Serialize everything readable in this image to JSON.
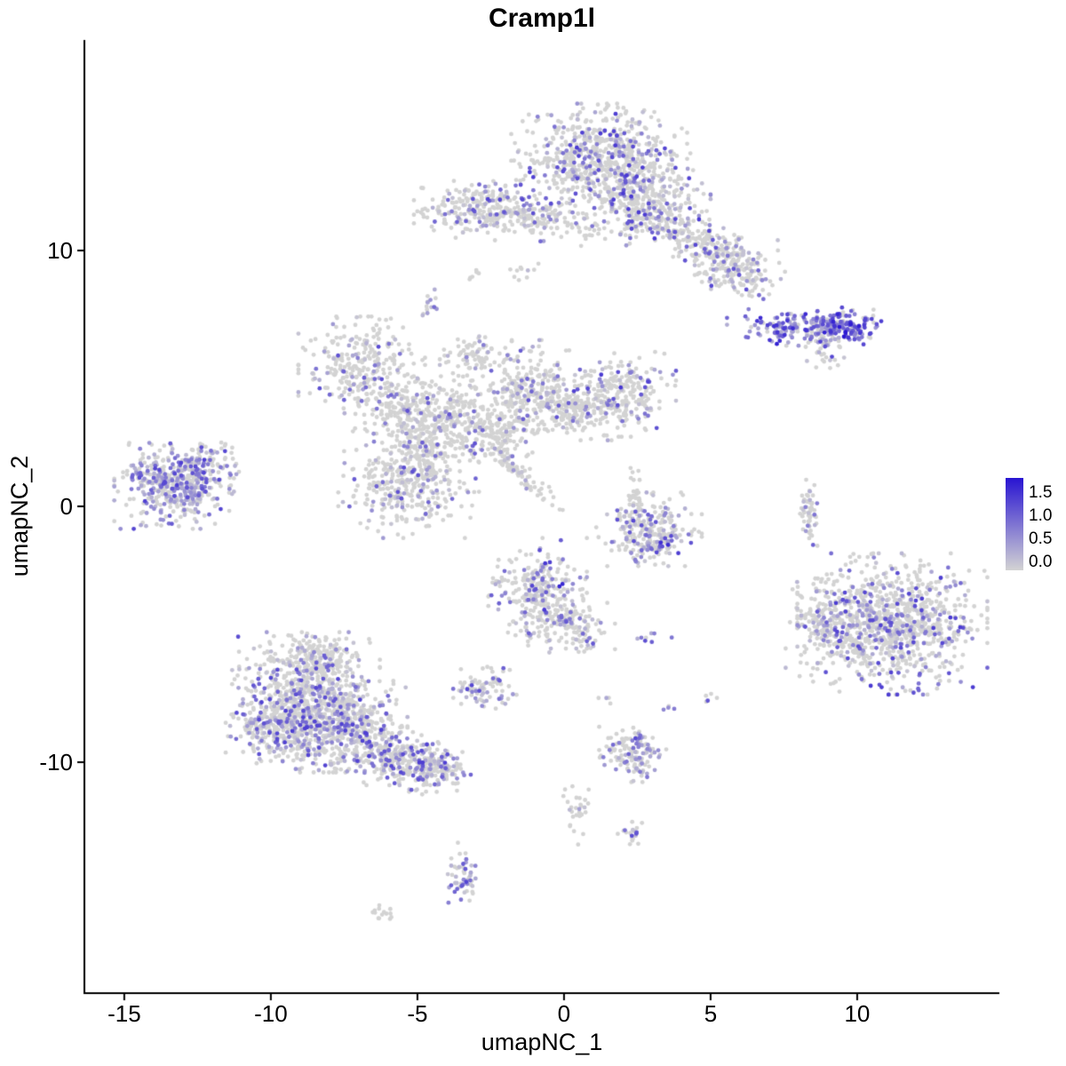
{
  "chart_data": {
    "type": "scatter",
    "title": "Cramp1l",
    "xlabel": "umapNC_1",
    "ylabel": "umapNC_2",
    "xlim": [
      -16.36,
      14.85
    ],
    "ylim": [
      -19.03,
      18.23
    ],
    "x_ticks": [
      "-15",
      "-10",
      "-5",
      "0",
      "5",
      "10"
    ],
    "x_tick_values": [
      -15,
      -10,
      -5,
      0,
      5,
      10
    ],
    "y_ticks": [
      "-10",
      "0",
      "10"
    ],
    "y_tick_values": [
      -10,
      0,
      10
    ],
    "grid": false,
    "legend_position": "right",
    "legend": {
      "labels": [
        "1.5",
        "1.0",
        "0.5",
        "0.0"
      ],
      "values": [
        1.5,
        1.0,
        0.5,
        0.0
      ],
      "max": 1.6
    },
    "colors": {
      "low": "#d3d3d3",
      "high": "#2814d2",
      "axis": "#000000",
      "background": "#ffffff"
    },
    "point_radius": 2.4,
    "seed": 42,
    "clusters": [
      {
        "name": "top-main",
        "cx": 1.2,
        "cy": 13.7,
        "sx": 1.25,
        "sy": 0.85,
        "n": 620,
        "frac": 0.28,
        "vmax": 1.3
      },
      {
        "name": "top-main-lower",
        "cx": 2.6,
        "cy": 12.0,
        "sx": 1.0,
        "sy": 0.75,
        "n": 360,
        "frac": 0.28,
        "vmax": 1.3
      },
      {
        "name": "top-arm",
        "cx": 4.6,
        "cy": 10.3,
        "sx": 1.3,
        "sy": 0.4,
        "rot": -0.63,
        "n": 260,
        "frac": 0.25,
        "vmax": 1.2
      },
      {
        "name": "top-arm-end",
        "cx": 5.9,
        "cy": 9.3,
        "sx": 0.6,
        "sy": 0.5,
        "n": 140,
        "frac": 0.3,
        "vmax": 1.2
      },
      {
        "name": "topleft-arm",
        "cx": -2.6,
        "cy": 11.6,
        "sx": 1.05,
        "sy": 0.5,
        "n": 280,
        "frac": 0.22,
        "vmax": 1.2
      },
      {
        "name": "topleft-tail",
        "cx": -0.9,
        "cy": 11.2,
        "sx": 0.5,
        "sy": 0.35,
        "n": 70,
        "frac": 0.15,
        "vmax": 1.0
      },
      {
        "name": "top-bridge",
        "cx": 0.5,
        "cy": 10.9,
        "sx": 0.45,
        "sy": 0.3,
        "n": 30,
        "frac": 0.15,
        "vmax": 1.0
      },
      {
        "name": "satellite-mid-9",
        "cx": -1.4,
        "cy": 9.2,
        "sx": 0.3,
        "sy": 0.2,
        "n": 10,
        "frac": 0.1,
        "vmax": 0.8
      },
      {
        "name": "satellite-mid-8",
        "cx": -4.6,
        "cy": 8.0,
        "sx": 0.2,
        "sy": 0.3,
        "n": 16,
        "frac": 0.35,
        "vmax": 1.0
      },
      {
        "name": "satellite-mid-35",
        "cx": -3.0,
        "cy": 9.0,
        "sx": 0.15,
        "sy": 0.15,
        "n": 6,
        "frac": 0.2,
        "vmax": 0.8
      },
      {
        "name": "right-streak",
        "cx": 8.2,
        "cy": 7.0,
        "sx": 1.1,
        "sy": 0.3,
        "n": 200,
        "frac": 0.75,
        "vmin": 0.3,
        "vmax": 1.5
      },
      {
        "name": "right-streak-end",
        "cx": 9.6,
        "cy": 7.05,
        "sx": 0.45,
        "sy": 0.3,
        "n": 90,
        "frac": 0.9,
        "vmin": 0.5,
        "vmax": 1.6
      },
      {
        "name": "right-streak-tail",
        "cx": 8.9,
        "cy": 6.3,
        "sx": 0.3,
        "sy": 0.4,
        "n": 45,
        "frac": 0.4,
        "vmax": 1.2
      },
      {
        "name": "net-topleft",
        "cx": -6.9,
        "cy": 5.5,
        "sx": 0.9,
        "sy": 0.8,
        "n": 280,
        "frac": 0.18,
        "vmax": 1.2
      },
      {
        "name": "net-arm1",
        "cx": -5.4,
        "cy": 3.9,
        "sx": 0.75,
        "sy": 0.65,
        "n": 200,
        "frac": 0.15,
        "vmax": 1.1
      },
      {
        "name": "net-arm2",
        "cx": -4.6,
        "cy": 2.3,
        "sx": 0.65,
        "sy": 0.75,
        "n": 190,
        "frac": 0.15,
        "vmax": 1.1
      },
      {
        "name": "net-blob",
        "cx": -5.3,
        "cy": 0.8,
        "sx": 1.0,
        "sy": 0.85,
        "n": 330,
        "frac": 0.2,
        "vmax": 1.2
      },
      {
        "name": "net-bridge1",
        "cx": -3.6,
        "cy": 3.6,
        "sx": 0.55,
        "sy": 0.55,
        "n": 130,
        "frac": 0.12,
        "vmax": 1.0
      },
      {
        "name": "net-bridge2",
        "cx": -2.3,
        "cy": 3.0,
        "sx": 0.65,
        "sy": 0.6,
        "n": 150,
        "frac": 0.12,
        "vmax": 1.0
      },
      {
        "name": "net-center-top",
        "cx": -1.2,
        "cy": 4.7,
        "sx": 0.8,
        "sy": 0.75,
        "n": 260,
        "frac": 0.2,
        "vmax": 1.2
      },
      {
        "name": "net-center-right",
        "cx": 0.3,
        "cy": 3.9,
        "sx": 0.75,
        "sy": 0.55,
        "n": 170,
        "frac": 0.15,
        "vmax": 1.1
      },
      {
        "name": "net-right",
        "cx": 1.9,
        "cy": 4.4,
        "sx": 0.8,
        "sy": 0.7,
        "n": 240,
        "frac": 0.25,
        "vmax": 1.3
      },
      {
        "name": "net-streak",
        "cx": -1.6,
        "cy": 1.4,
        "sx": 0.95,
        "sy": 0.16,
        "rot": -0.84,
        "n": 85,
        "frac": 0.12,
        "vmax": 1.0
      },
      {
        "name": "net-top-wisp",
        "cx": -3.1,
        "cy": 5.9,
        "sx": 0.5,
        "sy": 0.35,
        "n": 70,
        "frac": 0.12,
        "vmax": 1.0
      },
      {
        "name": "left-island",
        "cx": -13.3,
        "cy": 0.8,
        "sx": 0.85,
        "sy": 0.7,
        "n": 470,
        "frac": 0.5,
        "vmin": 0.2,
        "vmax": 1.25
      },
      {
        "name": "left-island-edge",
        "cx": -12.2,
        "cy": 1.6,
        "sx": 0.5,
        "sy": 0.45,
        "n": 70,
        "frac": 0.4,
        "vmax": 1.2
      },
      {
        "name": "mid-crescent",
        "cx": 2.9,
        "cy": -0.9,
        "sx": 0.75,
        "sy": 0.6,
        "n": 230,
        "frac": 0.3,
        "vmax": 1.2
      },
      {
        "name": "mid-crescent-dark",
        "cx": 3.1,
        "cy": -1.5,
        "sx": 0.4,
        "sy": 0.2,
        "n": 40,
        "frac": 0.6,
        "vmin": 0.3,
        "vmax": 1.4
      },
      {
        "name": "mid-thread",
        "cx": 2.4,
        "cy": 0.3,
        "sx": 0.12,
        "sy": 0.5,
        "n": 35,
        "frac": 0.15,
        "vmax": 1.0
      },
      {
        "name": "center-blob",
        "cx": -0.9,
        "cy": -3.4,
        "sx": 0.7,
        "sy": 0.9,
        "n": 310,
        "frac": 0.3,
        "vmax": 1.35
      },
      {
        "name": "center-blob-arm",
        "cx": 0.3,
        "cy": -4.7,
        "sx": 0.6,
        "sy": 0.45,
        "n": 120,
        "frac": 0.2,
        "vmax": 1.2
      },
      {
        "name": "center-dark-dot",
        "cx": -0.15,
        "cy": -3.05,
        "sx": 0.05,
        "sy": 0.05,
        "n": 2,
        "frac": 1.0,
        "vmin": 1.45,
        "vmax": 1.6
      },
      {
        "name": "center-pair",
        "cx": 3.1,
        "cy": -5.05,
        "sx": 0.25,
        "sy": 0.12,
        "n": 8,
        "frac": 0.7,
        "vmin": 0.3,
        "vmax": 1.2
      },
      {
        "name": "small-left-mid",
        "cx": -2.7,
        "cy": -7.1,
        "sx": 0.45,
        "sy": 0.4,
        "n": 80,
        "frac": 0.4,
        "vmax": 1.2
      },
      {
        "name": "bottomleft-top",
        "cx": -8.8,
        "cy": -7.2,
        "sx": 1.05,
        "sy": 0.95,
        "n": 520,
        "frac": 0.3,
        "vmax": 1.25
      },
      {
        "name": "bottomleft-left",
        "cx": -9.5,
        "cy": -8.6,
        "sx": 0.85,
        "sy": 0.7,
        "n": 400,
        "frac": 0.33,
        "vmax": 1.25
      },
      {
        "name": "bottomleft-mid",
        "cx": -7.5,
        "cy": -8.6,
        "sx": 0.9,
        "sy": 0.75,
        "n": 400,
        "frac": 0.3,
        "vmax": 1.25
      },
      {
        "name": "bottomleft-tail",
        "cx": -5.9,
        "cy": -9.7,
        "sx": 0.8,
        "sy": 0.5,
        "n": 250,
        "frac": 0.3,
        "vmax": 1.25
      },
      {
        "name": "bottomleft-tail-end",
        "cx": -4.5,
        "cy": -10.3,
        "sx": 0.55,
        "sy": 0.4,
        "n": 180,
        "frac": 0.35,
        "vmax": 1.25
      },
      {
        "name": "bottomleft-top-wisp",
        "cx": -8.3,
        "cy": -5.8,
        "sx": 0.8,
        "sy": 0.4,
        "n": 120,
        "frac": 0.2,
        "vmax": 1.1
      },
      {
        "name": "right-big",
        "cx": 11.2,
        "cy": -4.6,
        "sx": 1.35,
        "sy": 1.15,
        "n": 950,
        "frac": 0.28,
        "vmax": 1.3
      },
      {
        "name": "right-big-left",
        "cx": 9.0,
        "cy": -4.6,
        "sx": 0.6,
        "sy": 1.0,
        "n": 160,
        "frac": 0.3,
        "vmax": 1.2
      },
      {
        "name": "right-satellite",
        "cx": 8.35,
        "cy": -0.4,
        "sx": 0.14,
        "sy": 0.6,
        "n": 55,
        "frac": 0.15,
        "vmax": 1.0
      },
      {
        "name": "bottom-small",
        "cx": 2.4,
        "cy": -9.7,
        "sx": 0.5,
        "sy": 0.45,
        "n": 140,
        "frac": 0.35,
        "vmax": 1.25
      },
      {
        "name": "bottom-thread",
        "cx": 0.4,
        "cy": -11.9,
        "sx": 0.2,
        "sy": 0.55,
        "n": 30,
        "frac": 0.1,
        "vmax": 0.8
      },
      {
        "name": "bottom-pair",
        "cx": 2.3,
        "cy": -12.8,
        "sx": 0.2,
        "sy": 0.25,
        "n": 20,
        "frac": 0.5,
        "vmax": 1.2
      },
      {
        "name": "bottom-purple",
        "cx": -3.5,
        "cy": -14.4,
        "sx": 0.3,
        "sy": 0.55,
        "n": 55,
        "frac": 0.5,
        "vmax": 1.2
      },
      {
        "name": "bottom-tiny",
        "cx": -6.1,
        "cy": -15.9,
        "sx": 0.25,
        "sy": 0.15,
        "n": 14,
        "frac": 0.1,
        "vmax": 0.8
      },
      {
        "name": "stray-1",
        "cx": 5.0,
        "cy": -7.5,
        "sx": 0.15,
        "sy": 0.15,
        "n": 5,
        "frac": 0.4,
        "vmax": 1.1
      },
      {
        "name": "stray-2",
        "cx": 3.4,
        "cy": -7.8,
        "sx": 0.15,
        "sy": 0.15,
        "n": 4,
        "frac": 0.3,
        "vmax": 1.0
      },
      {
        "name": "stray-3",
        "cx": 1.4,
        "cy": -7.6,
        "sx": 0.2,
        "sy": 0.15,
        "n": 4,
        "frac": 0.2,
        "vmax": 0.9
      }
    ]
  }
}
